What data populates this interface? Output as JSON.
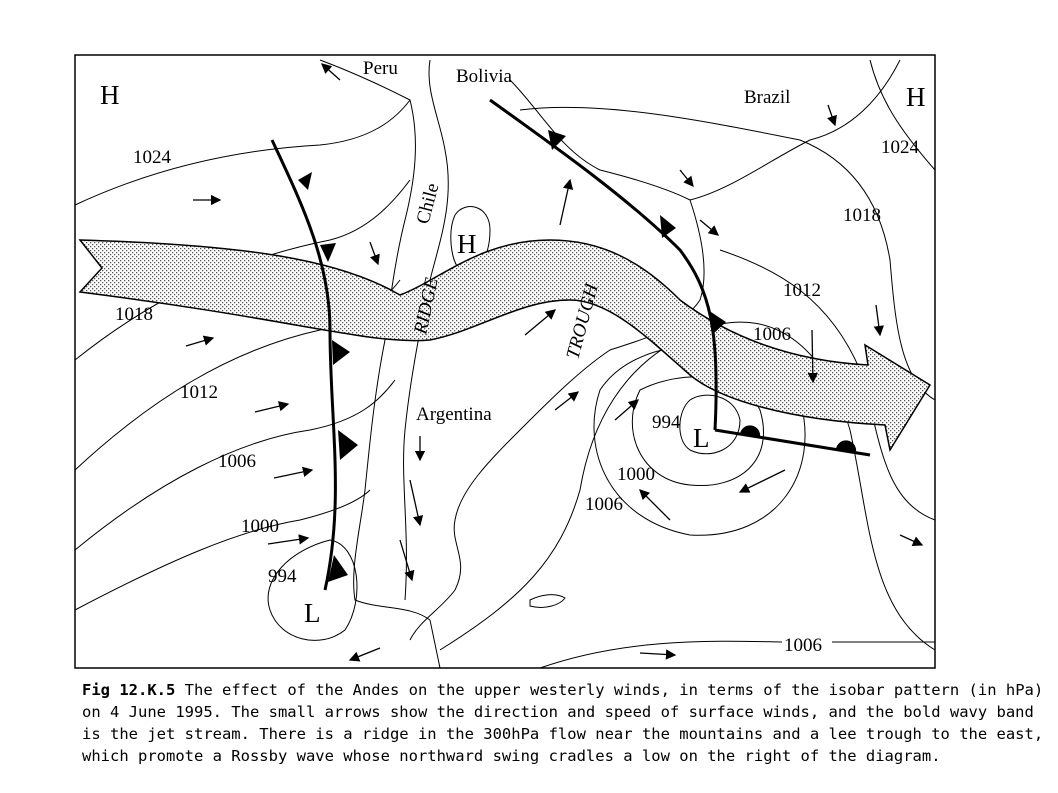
{
  "map": {
    "labels": [
      "H",
      "Peru",
      "Bolivia",
      "Brazil",
      "H",
      "1024",
      "1024",
      "Chile",
      "H",
      "1018",
      "RIDGE",
      "TROUGH",
      "1012",
      "1018",
      "1006",
      "1012",
      "Argentina",
      "994",
      "L",
      "1006",
      "1000",
      "1006",
      "1000",
      "994",
      "L",
      "1006"
    ]
  },
  "caption": {
    "label": "Fig 12.K.5",
    "lines": [
      "The effect of the Andes on the upper westerly winds, in terms of the isobar pattern (in hPa)",
      "on 4 June 1995. The small arrows show the direction and speed of surface winds, and the bold wavy band",
      "is the jet stream. There is a ridge in the 300hPa flow near the mountains and a lee trough to the east,",
      "which promote a Rossby wave whose northward swing cradles a low on the right of the diagram."
    ]
  }
}
